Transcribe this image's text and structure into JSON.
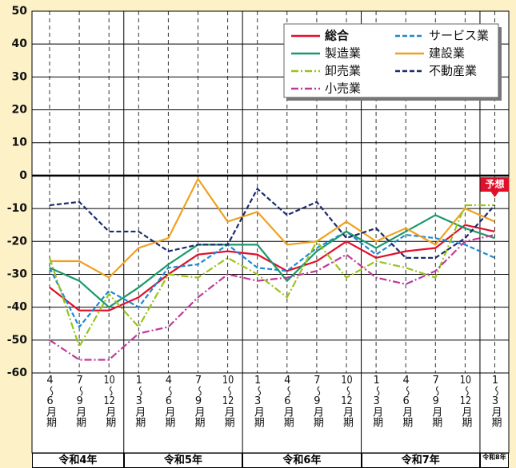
{
  "chart_data": {
    "type": "line",
    "annotation": "予想",
    "categories": [
      "4〜6月期",
      "7〜9月期",
      "10〜12月期",
      "1〜3月期",
      "4〜6月期",
      "7〜9月期",
      "10〜12月期",
      "1〜3月期",
      "4〜6月期",
      "7〜9月期",
      "10〜12月期",
      "1〜3月期",
      "4〜6月期",
      "7〜9月期",
      "10〜12月期",
      "1〜3月期"
    ],
    "year_groups": [
      {
        "label": "令和4年",
        "span": 3
      },
      {
        "label": "令和5年",
        "span": 4
      },
      {
        "label": "令和6年",
        "span": 4
      },
      {
        "label": "令和7年",
        "span": 4
      },
      {
        "label": "令和8年",
        "span": 1
      }
    ],
    "ylim": [
      -60,
      50
    ],
    "yticks": [
      50,
      40,
      30,
      20,
      10,
      0,
      -10,
      -20,
      -30,
      -40,
      -50,
      -60
    ],
    "grid": true,
    "legend": "upper right",
    "series": [
      {
        "name": "総合",
        "color": "#e0102a",
        "dash": "solid",
        "values": [
          -34,
          -41,
          -41,
          -37,
          -30,
          -24,
          -23,
          -24,
          -29,
          -26,
          -20,
          -25,
          -23,
          -22,
          -15,
          -17
        ]
      },
      {
        "name": "サービス業",
        "color": "#1b8ad3",
        "dash": "dashed",
        "values": [
          -28,
          -46,
          -35,
          -40,
          -28,
          -27,
          -21,
          -28,
          -29,
          -22,
          -17,
          -24,
          -18,
          -19,
          -21,
          -25
        ]
      },
      {
        "name": "製造業",
        "color": "#1a9a6a",
        "dash": "solid",
        "values": [
          -28,
          -32,
          -40,
          -34,
          -27,
          -21,
          -21,
          -21,
          -32,
          -23,
          -17,
          -22,
          -17,
          -12,
          -16,
          -19
        ]
      },
      {
        "name": "建設業",
        "color": "#f0a020",
        "dash": "solid",
        "values": [
          -26,
          -26,
          -31,
          -22,
          -19,
          -1,
          -14,
          -11,
          -21,
          -20,
          -14,
          -20,
          -16,
          -21,
          -10,
          -14
        ]
      },
      {
        "name": "卸売業",
        "color": "#99c31c",
        "dash": "dashdot",
        "values": [
          -25,
          -52,
          -36,
          -46,
          -30,
          -31,
          -25,
          -30,
          -37,
          -20,
          -31,
          -26,
          -28,
          -31,
          -9,
          -9
        ]
      },
      {
        "name": "不動産業",
        "color": "#1c2a6e",
        "dash": "dashed",
        "values": [
          -9,
          -8,
          -17,
          -17,
          -23,
          -21,
          -21,
          -4,
          -12,
          -8,
          -19,
          -16,
          -25,
          -25,
          -19,
          -9
        ]
      },
      {
        "name": "小売業",
        "color": "#c0399a",
        "dash": "dashdot",
        "values": [
          -50,
          -56,
          -56,
          -48,
          -46,
          -37,
          -30,
          -32,
          -31,
          -29,
          -24,
          -31,
          -33,
          -29,
          -20,
          -18
        ]
      }
    ]
  }
}
